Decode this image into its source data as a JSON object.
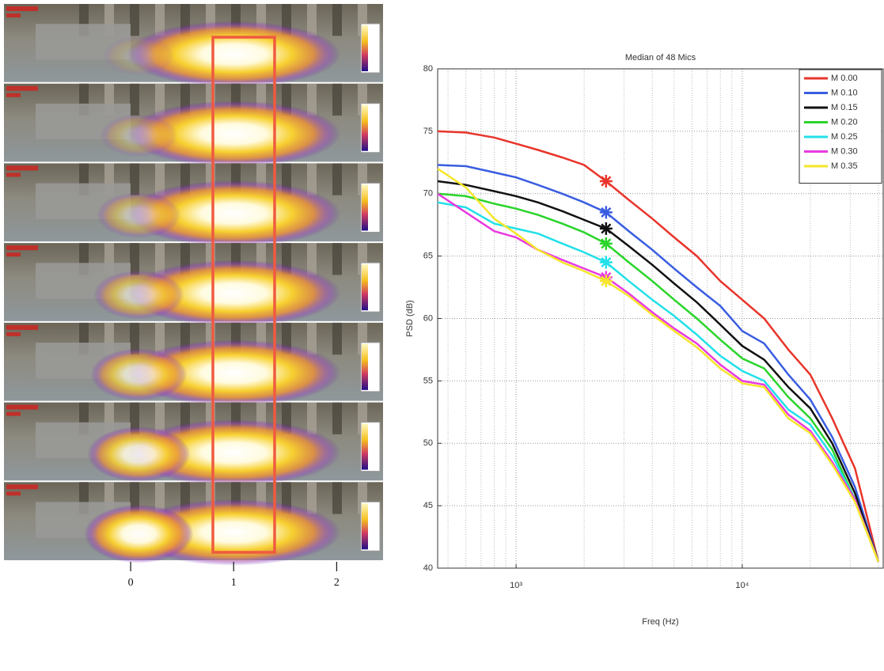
{
  "chart_data": [
    {
      "type": "image",
      "xlim": [
        -1.23,
        2.45
      ],
      "xticks": [
        0,
        1,
        2
      ]
    },
    {
      "type": "line",
      "title": "Median of 48 Mics",
      "x_label": "Freq (Hz)",
      "y_label": "PSD (dB)",
      "xscale": "log",
      "grid": true,
      "legend": "upper right",
      "highlight_x": 2500,
      "xlim": [
        450,
        42000
      ],
      "ylim": [
        40,
        80
      ],
      "xticks": [
        {
          "value": 1000,
          "label": "10³"
        },
        {
          "value": 10000,
          "label": "10⁴"
        }
      ],
      "yticks": [
        40,
        45,
        50,
        55,
        60,
        65,
        70,
        75,
        80
      ],
      "x": [
        450,
        600,
        800,
        1000,
        1250,
        1600,
        2000,
        2500,
        3150,
        4000,
        5000,
        6300,
        8000,
        10000,
        12500,
        16000,
        20000,
        25000,
        31500,
        40000
      ],
      "series": [
        {
          "name": "M 0.00",
          "color": "#e8352b",
          "values": [
            75,
            74.9,
            74.5,
            74,
            73.5,
            72.9,
            72.3,
            71,
            69.5,
            68,
            66.5,
            65,
            63,
            61.5,
            60,
            57.5,
            55.5,
            52,
            48,
            40.5
          ]
        },
        {
          "name": "M 0.10",
          "color": "#3a5de0",
          "values": [
            72.3,
            72.2,
            71.7,
            71.3,
            70.7,
            70,
            69.3,
            68.5,
            67,
            65.5,
            64,
            62.5,
            61,
            59,
            58,
            55.5,
            53.5,
            50.5,
            46.5,
            40.5
          ]
        },
        {
          "name": "M 0.15",
          "color": "#111111",
          "values": [
            71,
            70.7,
            70.2,
            69.8,
            69.3,
            68.6,
            67.9,
            67.2,
            65.8,
            64.3,
            62.8,
            61.3,
            59.5,
            57.8,
            56.7,
            54.5,
            52.8,
            50,
            46,
            40.5
          ]
        },
        {
          "name": "M 0.20",
          "color": "#2bd42b",
          "values": [
            70,
            69.8,
            69.2,
            68.8,
            68.3,
            67.6,
            66.9,
            66,
            64.5,
            63,
            61.5,
            60,
            58.3,
            56.8,
            56,
            53.7,
            52,
            49.5,
            45.5,
            40.5
          ]
        },
        {
          "name": "M 0.25",
          "color": "#22e0e8",
          "values": [
            69.3,
            68.9,
            67.6,
            67.2,
            66.8,
            66,
            65.3,
            64.5,
            63,
            61.5,
            60.2,
            58.7,
            57,
            55.8,
            55,
            52.7,
            51.5,
            49,
            45.5,
            40.5
          ]
        },
        {
          "name": "M 0.30",
          "color": "#e83ae0",
          "values": [
            70,
            68.5,
            67,
            66.5,
            65.5,
            64.7,
            64,
            63.3,
            62,
            60.5,
            59.2,
            58,
            56.3,
            55,
            54.7,
            52.3,
            51,
            48.5,
            45.5,
            40.5
          ]
        },
        {
          "name": "M 0.35",
          "color": "#f5e62a",
          "values": [
            72,
            70.5,
            68,
            66.8,
            65.5,
            64.5,
            63.8,
            63,
            61.8,
            60.3,
            59,
            57.7,
            56,
            54.8,
            54.5,
            52,
            50.8,
            48.3,
            45.3,
            40.5
          ]
        }
      ]
    }
  ]
}
